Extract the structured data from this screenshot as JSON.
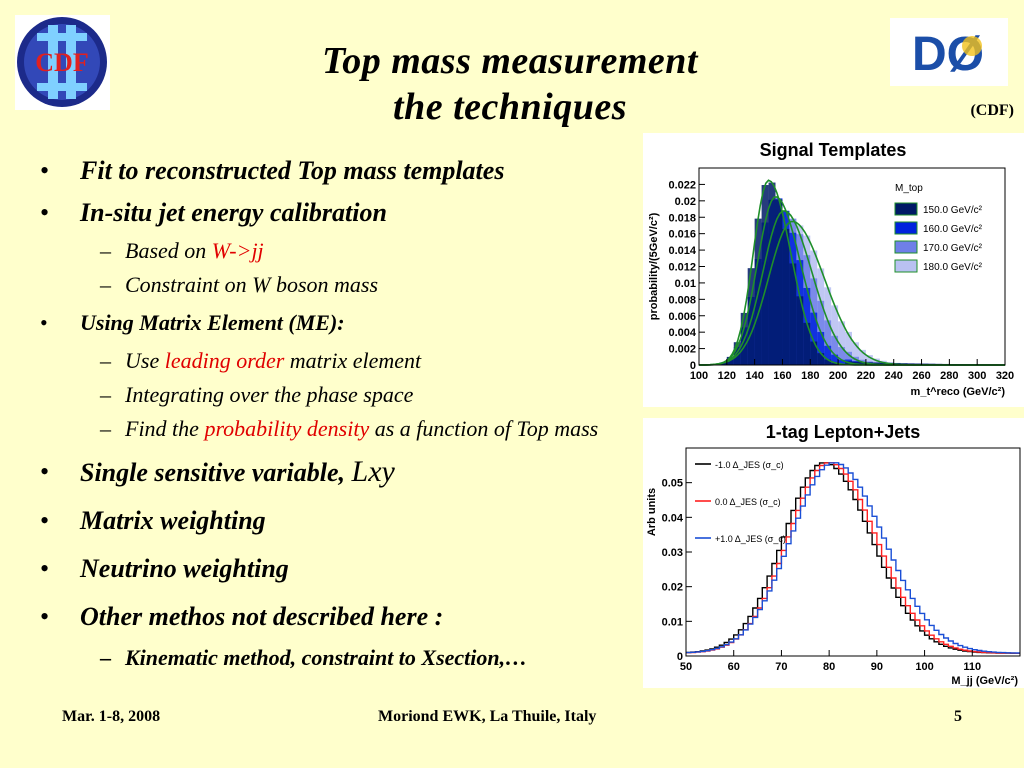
{
  "logos": {
    "left": {
      "text": "CDF",
      "icon": "cdf-logo"
    },
    "right": {
      "text": "DØ",
      "icon": "d0-logo"
    }
  },
  "title": {
    "line1": "Top mass measurement",
    "line2": "the techniques"
  },
  "cdf_note": "(CDF)",
  "bullets": [
    {
      "text": "Fit to reconstructed Top mass templates"
    },
    {
      "text": "In-situ jet energy calibration",
      "sub": [
        {
          "prefix": "Based on ",
          "highlight": "W->jj",
          "suffix": ""
        },
        {
          "prefix": "Constraint on W boson mass",
          "highlight": "",
          "suffix": ""
        }
      ]
    },
    {
      "text": "Using Matrix Element (ME):",
      "sub": [
        {
          "prefix": "Use ",
          "highlight": "leading order",
          "suffix": " matrix element"
        },
        {
          "prefix": "Integrating over the phase space",
          "highlight": "",
          "suffix": ""
        },
        {
          "prefix": "Find the ",
          "highlight": "probability density",
          "suffix": " as a function of Top mass"
        }
      ]
    },
    {
      "text": "Single sensitive variable, ",
      "tail": "Lxy"
    },
    {
      "text": "Matrix weighting"
    },
    {
      "text": "Neutrino weighting"
    },
    {
      "text": "Other methos not described here :",
      "sub": [
        {
          "prefix": "Kinematic method, constraint to Xsection,…",
          "highlight": "",
          "suffix": ""
        }
      ]
    }
  ],
  "footer": {
    "date": "Mar. 1-8, 2008",
    "venue": "Moriond EWK, La Thuile, Italy",
    "page": "5"
  },
  "chart_data": [
    {
      "type": "bar",
      "title": "Signal Templates",
      "xlabel": "m_t^reco (GeV/c²)",
      "ylabel": "probability/(5GeV/c²)",
      "xlim": [
        100,
        320
      ],
      "ylim": [
        0,
        0.024
      ],
      "xticks": [
        100,
        120,
        140,
        160,
        180,
        200,
        220,
        240,
        260,
        280,
        300,
        320
      ],
      "yticks": [
        0,
        0.002,
        0.004,
        0.006,
        0.008,
        0.01,
        0.012,
        0.014,
        0.016,
        0.018,
        0.02,
        0.022
      ],
      "legend_title": "M_top",
      "legend_position": "top-right",
      "series": [
        {
          "name": "150.0 GeV/c²",
          "peak": 150,
          "height": 0.0225,
          "sigma_l": 11,
          "sigma_r": 16,
          "color": "#001a66"
        },
        {
          "name": "160.0 GeV/c²",
          "peak": 155,
          "height": 0.0205,
          "sigma_l": 13,
          "sigma_r": 18,
          "color": "#0022dd"
        },
        {
          "name": "170.0 GeV/c²",
          "peak": 161,
          "height": 0.0188,
          "sigma_l": 15,
          "sigma_r": 20,
          "color": "#6f7fe8"
        },
        {
          "name": "180.0 GeV/c²",
          "peak": 167,
          "height": 0.0175,
          "sigma_l": 17,
          "sigma_r": 23,
          "color": "#b9c1f2"
        }
      ]
    },
    {
      "type": "line",
      "title": "1-tag Lepton+Jets",
      "xlabel": "M_jj (GeV/c²)",
      "ylabel": "Arb units",
      "xlim": [
        50,
        120
      ],
      "ylim": [
        0,
        0.06
      ],
      "xticks": [
        50,
        60,
        70,
        80,
        90,
        100,
        110
      ],
      "yticks": [
        0,
        0.01,
        0.02,
        0.03,
        0.04,
        0.05
      ],
      "legend_position": "top-left",
      "series": [
        {
          "name": "-1.0 Δ_JES (σ_c)",
          "peak": 79,
          "height": 0.055,
          "sigma": 9,
          "color": "#000000"
        },
        {
          "name": "0.0 Δ_JES (σ_c)",
          "peak": 80,
          "height": 0.055,
          "sigma": 9,
          "color": "#ff2020"
        },
        {
          "name": "+1.0 Δ_JES (σ_c)",
          "peak": 81,
          "height": 0.055,
          "sigma": 9.5,
          "color": "#1a4fd6"
        }
      ]
    }
  ]
}
